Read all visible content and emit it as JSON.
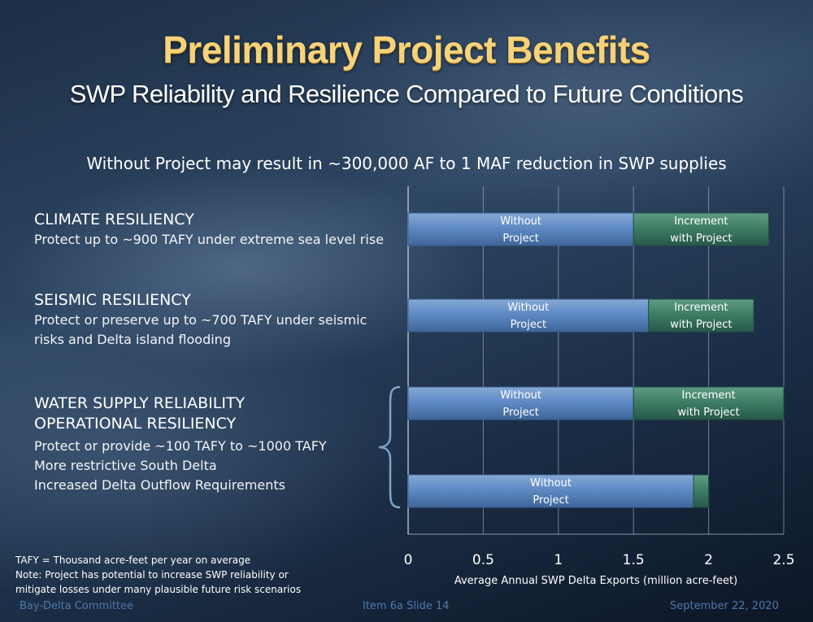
{
  "title": "Preliminary Project Benefits",
  "subtitle": "SWP Reliability and Resilience Compared to Future Conditions",
  "headline": "Without Project may result in ~300,000 AF to 1 MAF reduction in SWP supplies",
  "sections": [
    {
      "heading": [
        "CLIMATE RESILIENCY"
      ],
      "lines": [
        "Protect up to ~900 TAFY under extreme sea level rise"
      ]
    },
    {
      "heading": [
        "SEISMIC RESILIENCY"
      ],
      "lines": [
        "Protect or preserve up to ~700 TAFY under seismic",
        "risks and Delta island flooding"
      ]
    },
    {
      "heading": [
        "WATER SUPPLY RELIABILITY",
        "OPERATIONAL RESILIENCY"
      ],
      "lines": [
        "Protect or provide ~100 TAFY to ~1000 TAFY",
        "More restrictive South Delta",
        "Increased Delta Outflow Requirements"
      ]
    }
  ],
  "notes": [
    "TAFY = Thousand acre-feet per year on average",
    "Note: Project has potential to increase SWP reliability or",
    "mitigate losses under many plausible future risk scenarios"
  ],
  "footer": {
    "left": "Bay-Delta Committee",
    "center": "Item 6a  Slide 14",
    "right": "September 22, 2020"
  },
  "chart_data": {
    "type": "bar",
    "orientation": "horizontal",
    "stacked": true,
    "xlabel": "Average Annual SWP Delta Exports (million acre-feet)",
    "xlim": [
      0,
      2.5
    ],
    "xticks": [
      0,
      0.5,
      1,
      1.5,
      2,
      2.5
    ],
    "xtick_labels": [
      "0",
      "0.5",
      "1",
      "1.5",
      "2",
      "2.5"
    ],
    "grid": true,
    "colors": {
      "without": "#5f8ac4",
      "increment": "#3f7e66"
    },
    "categories": [
      "Climate Resiliency",
      "Seismic Resiliency",
      "Water Supply Reliability",
      "Operational Resiliency"
    ],
    "series": [
      {
        "name": "Without Project",
        "values": [
          1.5,
          1.6,
          1.5,
          1.9
        ],
        "labels": [
          [
            "Without",
            "Project"
          ],
          [
            "Without",
            "Project"
          ],
          [
            "Without",
            "Project"
          ],
          [
            "Without",
            "Project"
          ]
        ]
      },
      {
        "name": "Increment with Project",
        "values": [
          0.9,
          0.7,
          1.0,
          0.1
        ],
        "labels": [
          [
            "Increment",
            "with Project"
          ],
          [
            "Increment",
            "with Project"
          ],
          [
            "Increment",
            "with Project"
          ],
          []
        ]
      }
    ]
  }
}
